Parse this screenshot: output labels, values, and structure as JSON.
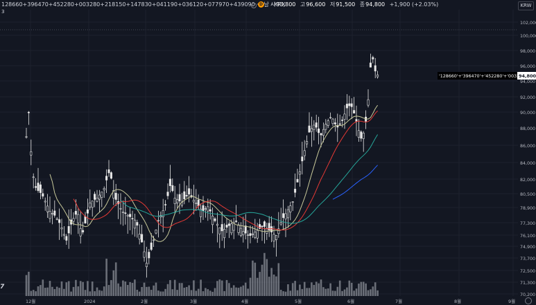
{
  "header": {
    "symbol": "128660+396470+452280+003280+218150+147830+041190+036120+077970+439090 · 1날 · KRX",
    "indicator_count": "3",
    "ohlc": [
      {
        "k": "시",
        "v": "93,800"
      },
      {
        "k": "고",
        "v": "96,600"
      },
      {
        "k": "저",
        "v": "91,500"
      },
      {
        "k": "종",
        "v": "94,800"
      }
    ],
    "change": "+1,900 (+2.03%)",
    "badge": "D",
    "currency": "KRW"
  },
  "price_label": {
    "symbol_tag": "'128660'+'396470'+'452280'+'003280'+...",
    "value": "94,800"
  },
  "price_axis": {
    "ticks": [
      "102,000",
      "100,000",
      "98,000",
      "96,000",
      "94,000",
      "92,000",
      "90,000",
      "88,000",
      "86,000",
      "84,000",
      "82,000",
      "80,500",
      "78,900",
      "77,300",
      "76,100",
      "74,900",
      "73,700",
      "72,500",
      "71,300",
      "70,200"
    ]
  },
  "time_axis": {
    "ticks": [
      "12월",
      "2024",
      "2월",
      "3월",
      "4월",
      "5월",
      "6월",
      "7월",
      "8월",
      "9월"
    ]
  },
  "colors": {
    "background": "#131722",
    "candle": "#e8e8e8",
    "ma_yellow": "#c8c99a",
    "ma_red": "#e53935",
    "ma_green": "#26a69a",
    "ma_blue": "#2962ff",
    "volume": "#8a8d96"
  },
  "chart_data": {
    "type": "candlestick",
    "ylim": [
      70200,
      102000
    ],
    "x": [
      "2023-12",
      "2024-01",
      "2024-02",
      "2024-03",
      "2024-04",
      "2024-05",
      "2024-06",
      "2024-07"
    ],
    "close_monthly": [
      86000,
      79000,
      76000,
      79500,
      76500,
      87000,
      91000,
      94800
    ],
    "last": {
      "open": 93800,
      "high": 96600,
      "low": 91500,
      "close": 94800
    }
  }
}
